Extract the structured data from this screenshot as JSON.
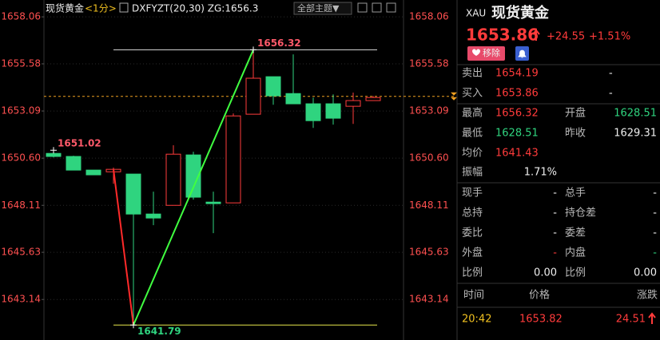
{
  "header": {
    "symbol": "现货黄金",
    "period": "<1分>",
    "indicator": "DXFYZT(20,30) ZG:1656.3",
    "theme_button": "全部主题▼"
  },
  "chart_data": {
    "type": "candlestick",
    "up_color": "#ff3b3b",
    "down_color": "#2fd47f",
    "grid": true,
    "ylim": [
      1641.0,
      1658.95
    ],
    "yticks": [
      1658.06,
      1655.58,
      1653.09,
      {
        "value": 1650.6,
        "label": "1650.60"
      },
      1648.11,
      1645.63,
      1643.14
    ],
    "candles": [
      {
        "open": 1650.85,
        "high": 1651.02,
        "low": 1650.64,
        "close": 1650.69
      },
      {
        "open": 1650.69,
        "high": 1650.73,
        "low": 1649.97,
        "close": 1649.97
      },
      {
        "open": 1649.97,
        "high": 1649.97,
        "low": 1649.72,
        "close": 1649.72
      },
      {
        "open": 1649.88,
        "high": 1650.1,
        "low": 1649.25,
        "close": 1650.01
      },
      {
        "open": 1649.76,
        "high": 1649.76,
        "low": 1641.79,
        "close": 1647.65
      },
      {
        "open": 1647.65,
        "high": 1648.83,
        "low": 1647.06,
        "close": 1647.44
      },
      {
        "open": 1648.11,
        "high": 1651.28,
        "low": 1648.11,
        "close": 1650.81
      },
      {
        "open": 1650.77,
        "high": 1650.94,
        "low": 1648.41,
        "close": 1648.54
      },
      {
        "open": 1648.28,
        "high": 1648.83,
        "low": 1646.64,
        "close": 1648.2
      },
      {
        "open": 1648.24,
        "high": 1652.96,
        "low": 1648.24,
        "close": 1652.83
      },
      {
        "open": 1652.92,
        "high": 1656.32,
        "low": 1652.92,
        "close": 1654.82
      },
      {
        "open": 1654.9,
        "high": 1654.9,
        "low": 1653.42,
        "close": 1653.89
      },
      {
        "open": 1654.01,
        "high": 1656.08,
        "low": 1653.47,
        "close": 1653.47
      },
      {
        "open": 1653.47,
        "high": 1653.8,
        "low": 1652.2,
        "close": 1652.58
      },
      {
        "open": 1653.47,
        "high": 1653.97,
        "low": 1652.37,
        "close": 1652.71
      },
      {
        "open": 1653.34,
        "high": 1654.06,
        "low": 1652.41,
        "close": 1653.64
      },
      {
        "open": 1653.64,
        "high": 1653.89,
        "low": 1653.64,
        "close": 1653.8
      }
    ],
    "last_price": 1653.86,
    "last_price_color": "#f0a020",
    "zigzag": {
      "x": [
        3,
        4,
        10
      ],
      "values": [
        1650.01,
        1641.79,
        1656.32
      ]
    },
    "level_lines": [
      {
        "value": 1656.32,
        "color": "#dddddd"
      },
      {
        "value": 1641.79,
        "color": "#e6e64c"
      }
    ],
    "annotations": [
      {
        "x": 0,
        "value": 1651.02,
        "color": "#ff5a6a"
      },
      {
        "x": 10,
        "value": 1656.32,
        "color": "#ff5a6a"
      },
      {
        "x": 4,
        "value": 1641.79,
        "color": "#2fd47f"
      }
    ]
  },
  "quote": {
    "code": "XAU",
    "name": "现货黄金",
    "price": "1653.86",
    "change": "+24.55",
    "change_pct": "+1.51%",
    "remove_button": "移除",
    "book": [
      [
        "卖出",
        "1654.19",
        "-"
      ],
      [
        "买入",
        "1653.86",
        "-"
      ]
    ],
    "stats": [
      [
        "最高",
        "1656.32",
        "开盘",
        "1628.51"
      ],
      [
        "最低",
        "1628.51",
        "昨收",
        "1629.31"
      ],
      [
        "均价",
        "1641.43"
      ],
      [
        "振幅",
        "1.71%"
      ]
    ],
    "volume": [
      [
        "现手",
        "-",
        "总手",
        "-"
      ],
      [
        "总持",
        "-",
        "持仓差",
        "-"
      ],
      [
        "委比",
        "-",
        "委差",
        "-"
      ],
      [
        "外盘",
        "-",
        "内盘",
        "-"
      ],
      [
        "比例",
        "0.00",
        "比例",
        "0.00"
      ]
    ],
    "ticks_header": [
      "时间",
      "价格",
      "涨跌"
    ],
    "ticks": [
      [
        "20:42",
        "1653.82",
        "24.51"
      ]
    ]
  }
}
